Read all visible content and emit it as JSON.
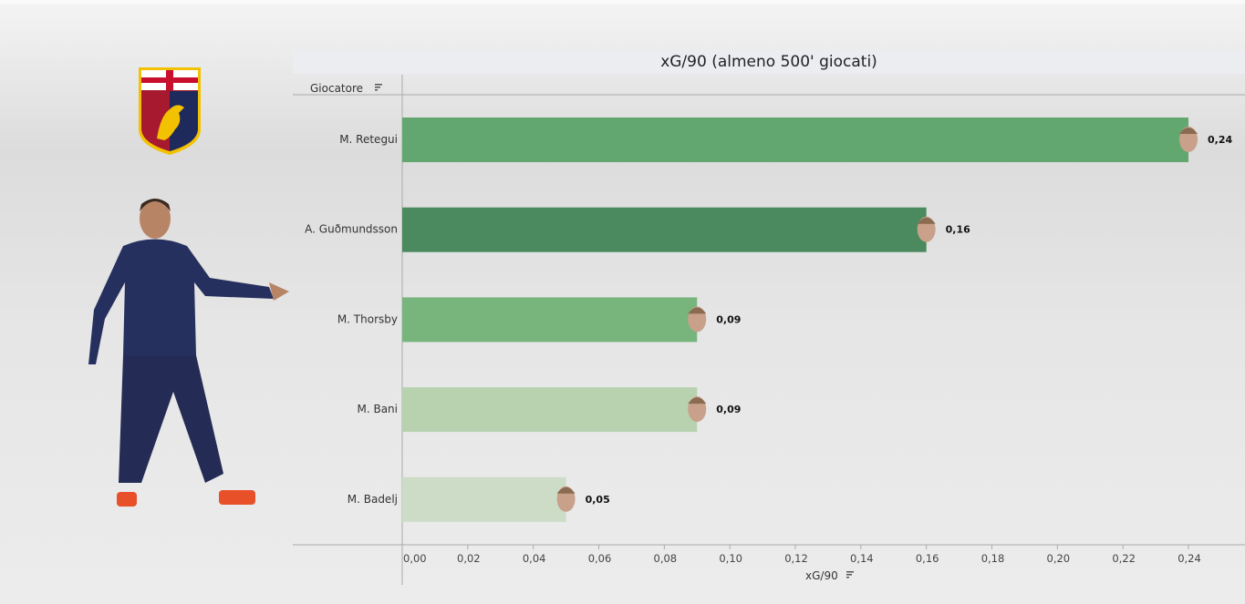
{
  "chart_data": {
    "type": "bar",
    "orientation": "horizontal",
    "title": "xG/90 (almeno 500' giocati)",
    "ylabel": "Giocatore",
    "xlabel": "xG/90",
    "categories": [
      "M. Retegui",
      "A. Guðmundsson",
      "M. Thorsby",
      "M. Bani",
      "M. Badelj"
    ],
    "values": [
      0.24,
      0.16,
      0.09,
      0.09,
      0.05
    ],
    "data_labels": [
      "0,24",
      "0,16",
      "0,09",
      "0,09",
      "0,05"
    ],
    "bar_colors": [
      "#63a770",
      "#4a8a5e",
      "#77b57d",
      "#b8d2b0",
      "#ccdcc6"
    ],
    "xlim": [
      0,
      0.255
    ],
    "xticks": [
      0,
      0.02,
      0.04,
      0.06,
      0.08,
      0.1,
      0.12,
      0.14,
      0.16,
      0.18,
      0.2,
      0.22,
      0.24
    ],
    "xtick_labels": [
      "0,00",
      "0,02",
      "0,04",
      "0,06",
      "0,08",
      "0,10",
      "0,12",
      "0,14",
      "0,16",
      "0,18",
      "0,20",
      "0,22",
      "0,24"
    ],
    "grid": false,
    "sort_icons": true
  },
  "colors": {
    "club_red": "#a6192e",
    "club_blue": "#1f2a5c",
    "gold": "#f2c200"
  }
}
